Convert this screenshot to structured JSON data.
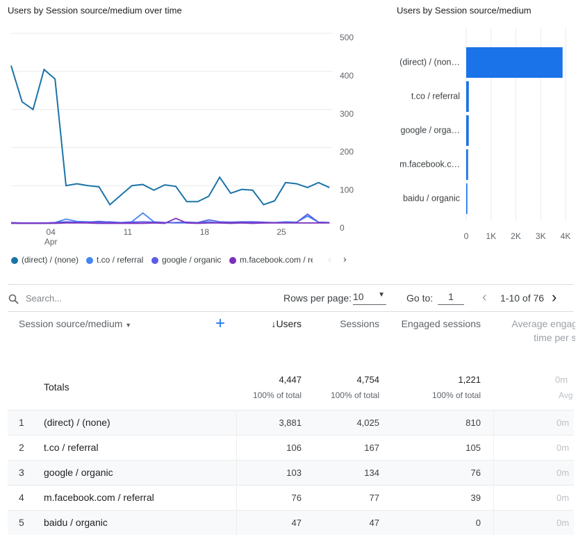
{
  "chart_data": [
    {
      "type": "line",
      "title": "Users by Session source/medium over time",
      "categories": [
        null,
        null,
        null,
        null,
        "04",
        null,
        null,
        null,
        null,
        null,
        null,
        "11",
        null,
        null,
        null,
        null,
        null,
        null,
        "18",
        null,
        null,
        null,
        null,
        null,
        null,
        "25",
        null,
        null,
        null,
        null
      ],
      "month_label": "Apr",
      "ylim": [
        0,
        500
      ],
      "yticks": [
        0,
        100,
        200,
        300,
        400,
        500
      ],
      "grid": true,
      "series": [
        {
          "name": "(direct) / (none)",
          "color": "#1a73a8",
          "values": [
            415,
            320,
            300,
            405,
            380,
            100,
            105,
            100,
            97,
            50,
            75,
            100,
            103,
            88,
            102,
            98,
            58,
            58,
            72,
            122,
            80,
            90,
            88,
            50,
            60,
            108,
            105,
            95,
            108,
            95
          ]
        },
        {
          "name": "t.co / referral",
          "color": "#4285f4",
          "values": [
            2,
            1,
            1,
            1,
            3,
            12,
            6,
            5,
            4,
            5,
            3,
            5,
            28,
            5,
            3,
            2,
            2,
            3,
            5,
            2,
            3,
            4,
            3,
            2,
            3,
            5,
            4,
            20,
            4,
            3
          ]
        },
        {
          "name": "google / organic",
          "color": "#5b5ce6",
          "values": [
            3,
            2,
            2,
            2,
            3,
            5,
            4,
            4,
            6,
            4,
            3,
            4,
            5,
            4,
            3,
            3,
            4,
            3,
            10,
            5,
            4,
            5,
            5,
            4,
            3,
            3,
            3,
            25,
            4,
            3
          ]
        },
        {
          "name": "m.facebook.com / referral",
          "color": "#7b2fbe",
          "values": [
            1,
            1,
            1,
            1,
            1,
            2,
            2,
            2,
            1,
            1,
            1,
            1,
            1,
            2,
            1,
            14,
            2,
            1,
            2,
            2,
            1,
            2,
            1,
            2,
            2,
            2,
            2,
            2,
            2,
            2
          ]
        }
      ]
    },
    {
      "type": "bar",
      "orientation": "horizontal",
      "title": "Users by Session source/medium",
      "categories": [
        "(direct) / (non…",
        "t.co / referral",
        "google / orga…",
        "m.facebook.c…",
        "baidu / organic"
      ],
      "values": [
        3881,
        106,
        103,
        76,
        47
      ],
      "color": "#1a73e8",
      "xlim": [
        0,
        4000
      ],
      "xticks": [
        0,
        {
          "value": 1000,
          "label": "1K"
        },
        {
          "value": 2000,
          "label": "2K"
        },
        {
          "value": 3000,
          "label": "3K"
        },
        {
          "value": 4000,
          "label": "4K"
        }
      ],
      "grid": true
    }
  ],
  "toolbar": {
    "search_placeholder": "Search...",
    "rows_per_page_label": "Rows per page:",
    "rows_per_page": "10",
    "go_to_label": "Go to:",
    "go_to": "1",
    "pagination": "1-10 of 76"
  },
  "table": {
    "columns": [
      "Session source/medium",
      "Users",
      "Sessions",
      "Engaged sessions",
      "Average engagement time per session"
    ],
    "totals": {
      "label": "Totals",
      "values": [
        "4,447",
        "4,754",
        "1,221",
        "0m"
      ],
      "notes": [
        "100% of total",
        "100% of total",
        "100% of total",
        "Avg"
      ]
    },
    "rows": [
      [
        "1",
        "(direct) / (none)",
        "3,881",
        "4,025",
        "810",
        "0m"
      ],
      [
        "2",
        "t.co / referral",
        "106",
        "167",
        "105",
        "0m"
      ],
      [
        "3",
        "google / organic",
        "103",
        "134",
        "76",
        "0m"
      ],
      [
        "4",
        "m.facebook.com / referral",
        "76",
        "77",
        "39",
        "0m"
      ],
      [
        "5",
        "baidu / organic",
        "47",
        "47",
        "0",
        "0m"
      ]
    ]
  }
}
